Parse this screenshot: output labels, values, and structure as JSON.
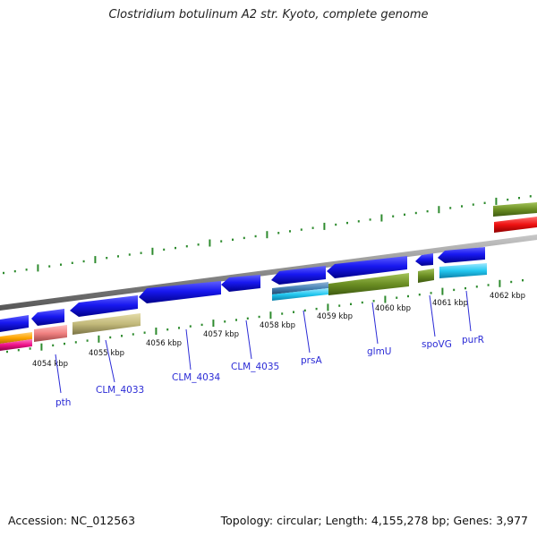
{
  "title": "Clostridium botulinum A2 str. Kyoto, complete genome",
  "footer": {
    "accession": "Accession: NC_012563",
    "topology": "Topology: circular; Length: 4,155,278 bp; Genes: 3,977"
  },
  "colors": {
    "backbone": "#8a8a8a",
    "gene_label": "#2b2bd6",
    "tick_major": "#2e8b2e",
    "cds": "#1010ee",
    "olive": "#6b8e23",
    "khaki": "#c2b97a",
    "salmon": "#f08080",
    "cyan": "#22c8f0",
    "steel": "#4682b4",
    "red": "#ee1111",
    "orange": "#ffa500",
    "magenta": "#ee1188"
  },
  "kbp_ticks": [
    "4054 kbp",
    "4055 kbp",
    "4056 kbp",
    "4057 kbp",
    "4058 kbp",
    "4059 kbp",
    "4060 kbp",
    "4061 kbp",
    "4062 kbp"
  ],
  "gene_labels": [
    "pth",
    "CLM_4033",
    "CLM_4034",
    "CLM_4035",
    "prsA",
    "glmU",
    "spoVG",
    "purR"
  ]
}
